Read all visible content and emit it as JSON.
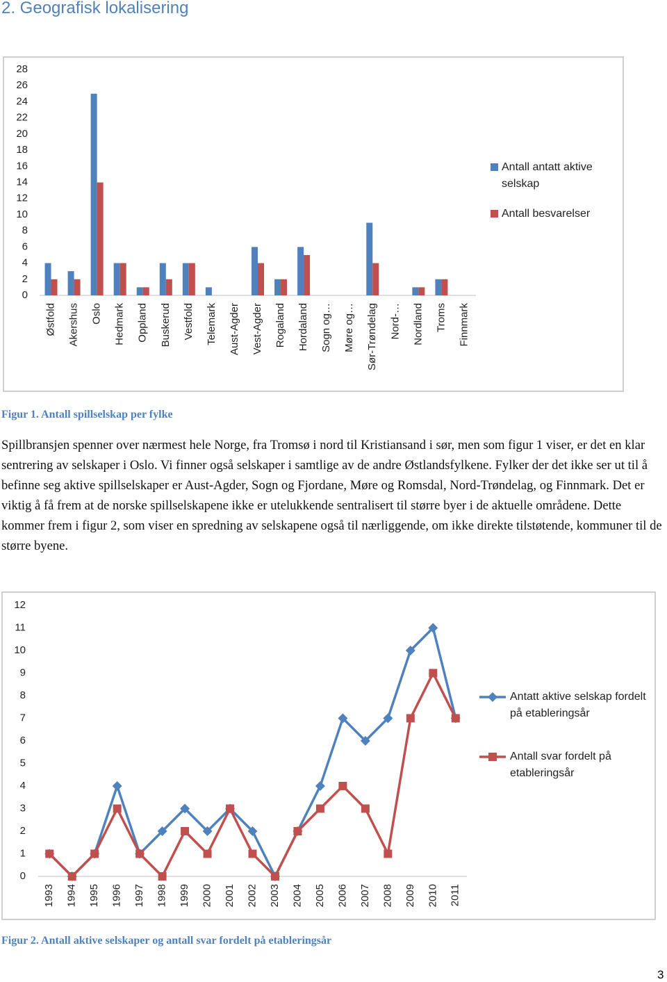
{
  "heading": "2. Geografisk lokalisering",
  "chart_data": [
    {
      "type": "bar",
      "categories": [
        "Østfold",
        "Akershus",
        "Oslo",
        "Hedmark",
        "Oppland",
        "Buskerud",
        "Vestfold",
        "Telemark",
        "Aust-Agder",
        "Vest-Agder",
        "Rogaland",
        "Hordaland",
        "Sogn og…",
        "Møre og…",
        "Sør-Trøndelag",
        "Nord-…",
        "Nordland",
        "Troms",
        "Finnmark"
      ],
      "series": [
        {
          "name": "Antall antatt aktive selskap",
          "color": "#4f81bd",
          "values": [
            4,
            3,
            25,
            4,
            1,
            4,
            4,
            1,
            0,
            6,
            2,
            6,
            0,
            0,
            9,
            0,
            1,
            2,
            0
          ]
        },
        {
          "name": "Antall besvarelser",
          "color": "#c0504d",
          "values": [
            2,
            2,
            14,
            4,
            1,
            2,
            4,
            0,
            0,
            4,
            2,
            5,
            0,
            0,
            4,
            0,
            1,
            2,
            0
          ]
        }
      ],
      "ylim": [
        0,
        28
      ],
      "yticks": [
        0,
        2,
        4,
        6,
        8,
        10,
        12,
        14,
        16,
        18,
        20,
        22,
        24,
        26,
        28
      ],
      "grid": false,
      "legend": "right"
    },
    {
      "type": "line",
      "categories": [
        "1993",
        "1994",
        "1995",
        "1996",
        "1997",
        "1998",
        "1999",
        "2000",
        "2001",
        "2002",
        "2003",
        "2004",
        "2005",
        "2006",
        "2007",
        "2008",
        "2009",
        "2010",
        "2011"
      ],
      "series": [
        {
          "name": "Antatt aktive selskap fordelt på etableringsår",
          "color": "#4f81bd",
          "marker": "diamond",
          "values": [
            1,
            0,
            1,
            4,
            1,
            2,
            3,
            2,
            3,
            2,
            0,
            2,
            4,
            7,
            6,
            7,
            10,
            11,
            7
          ]
        },
        {
          "name": "Antall svar fordelt på etableringsår",
          "color": "#c0504d",
          "marker": "square",
          "values": [
            1,
            0,
            1,
            3,
            1,
            0,
            2,
            1,
            3,
            1,
            0,
            2,
            3,
            4,
            3,
            1,
            7,
            9,
            7
          ]
        }
      ],
      "ylim": [
        0,
        12
      ],
      "yticks": [
        0,
        1,
        2,
        3,
        4,
        5,
        6,
        7,
        8,
        9,
        10,
        11,
        12
      ],
      "grid": false,
      "legend": "right"
    }
  ],
  "captions": [
    "Figur 1. Antall spillselskap per fylke",
    "Figur 2. Antall aktive selskaper og antall svar fordelt på etableringsår"
  ],
  "paragraph": "Spillbransjen spenner over nærmest hele Norge, fra Tromsø i nord til Kristiansand i sør, men som figur 1 viser, er det en klar sentrering av selskaper i Oslo. Vi finner også selskaper i samtlige av de andre Østlandsfylkene. Fylker der det ikke ser ut til å befinne seg aktive spillselskaper er Aust-Agder, Sogn og Fjordane, Møre og Romsdal, Nord-Trøndelag, og Finnmark. Det er viktig å få frem at de norske spillselskapene ikke er utelukkende sentralisert til større byer i de aktuelle områdene. Dette kommer frem i figur 2, som viser en spredning av selskapene også til nærliggende, om ikke direkte tilstøtende, kommuner til de større byene.",
  "page_number": "3"
}
